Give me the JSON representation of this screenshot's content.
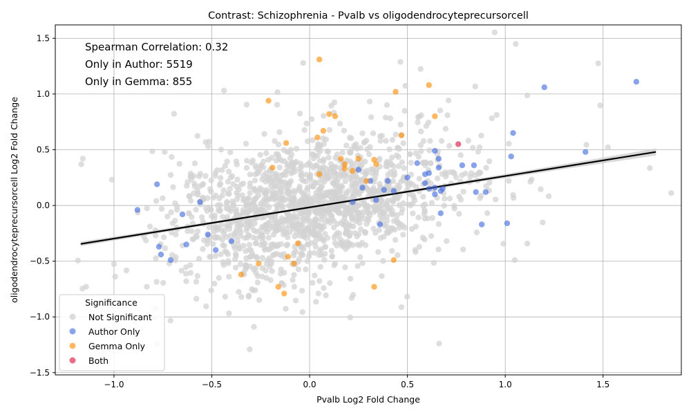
{
  "chart_data": {
    "type": "scatter",
    "title": "Contrast: Schizophrenia - Pvalb vs oligodendrocyteprecursorcell",
    "xlabel": "Pvalb Log2 Fold Change",
    "ylabel": "oligodendrocyteprecursorcell Log2 Fold Change",
    "xlim": [
      -1.3,
      1.9
    ],
    "ylim": [
      -1.52,
      1.62
    ],
    "x_ticks": [
      "−1.0",
      "−0.5",
      "0.0",
      "0.5",
      "1.0",
      "1.5"
    ],
    "x_tick_values": [
      -1.0,
      -0.5,
      0.0,
      0.5,
      1.0,
      1.5
    ],
    "y_ticks": [
      "−1.5",
      "−1.0",
      "−0.5",
      "0.0",
      "0.5",
      "1.0",
      "1.5"
    ],
    "y_tick_values": [
      -1.5,
      -1.0,
      -0.5,
      0.0,
      0.5,
      1.0,
      1.5
    ],
    "grid": true,
    "annotations": [
      "Spearman Correlation: 0.32",
      "Only in Author: 5519",
      "Only in Gemma: 855"
    ],
    "legend": {
      "title": "Significance",
      "placement": "lower-left",
      "entries": [
        "Not Significant",
        "Author Only",
        "Gemma Only",
        "Both"
      ]
    },
    "colors": {
      "Not Significant": "#d3d3d3",
      "Author Only": "#4169e1",
      "Gemma Only": "#ff8c00",
      "Both": "#dc143c"
    },
    "regression_line": {
      "x": [
        -1.17,
        1.77
      ],
      "y": [
        -0.345,
        0.48
      ],
      "color": "#000000"
    },
    "series": [
      {
        "name": "Author Only",
        "points": [
          [
            1.67,
            1.11
          ],
          [
            1.2,
            1.06
          ],
          [
            1.04,
            0.65
          ],
          [
            1.41,
            0.48
          ],
          [
            1.03,
            0.44
          ],
          [
            0.64,
            0.49
          ],
          [
            0.66,
            0.42
          ],
          [
            0.66,
            0.34
          ],
          [
            0.55,
            0.38
          ],
          [
            0.59,
            0.28
          ],
          [
            0.61,
            0.29
          ],
          [
            0.78,
            0.36
          ],
          [
            0.84,
            0.36
          ],
          [
            0.59,
            0.2
          ],
          [
            0.61,
            0.15
          ],
          [
            0.64,
            0.16
          ],
          [
            0.64,
            0.1
          ],
          [
            0.68,
            0.15
          ],
          [
            0.67,
            0.13
          ],
          [
            0.85,
            0.12
          ],
          [
            0.9,
            0.12
          ],
          [
            0.67,
            -0.07
          ],
          [
            0.88,
            -0.17
          ],
          [
            1.01,
            -0.16
          ],
          [
            -0.78,
            0.19
          ],
          [
            -0.88,
            -0.04
          ],
          [
            -0.65,
            -0.08
          ],
          [
            -0.77,
            -0.37
          ],
          [
            -0.76,
            -0.44
          ],
          [
            -0.71,
            -0.49
          ],
          [
            -0.63,
            -0.35
          ],
          [
            -0.52,
            -0.26
          ],
          [
            -0.56,
            0.03
          ],
          [
            -0.48,
            -0.4
          ],
          [
            -0.4,
            -0.32
          ],
          [
            0.38,
            0.14
          ],
          [
            0.43,
            0.13
          ],
          [
            0.5,
            0.25
          ],
          [
            0.36,
            -0.17
          ],
          [
            0.31,
            0.22
          ],
          [
            0.27,
            0.16
          ],
          [
            0.25,
            0.32
          ],
          [
            0.22,
            0.03
          ],
          [
            0.34,
            0.05
          ],
          [
            0.4,
            0.22
          ]
        ]
      },
      {
        "name": "Gemma Only",
        "points": [
          [
            0.05,
            1.31
          ],
          [
            0.44,
            1.02
          ],
          [
            0.61,
            1.08
          ],
          [
            -0.21,
            0.94
          ],
          [
            0.1,
            0.82
          ],
          [
            0.13,
            0.8
          ],
          [
            0.64,
            0.8
          ],
          [
            0.07,
            0.67
          ],
          [
            0.47,
            0.63
          ],
          [
            0.04,
            0.61
          ],
          [
            -0.12,
            0.56
          ],
          [
            0.33,
            0.41
          ],
          [
            -0.19,
            0.34
          ],
          [
            0.18,
            0.37
          ],
          [
            0.18,
            0.33
          ],
          [
            0.43,
            -0.49
          ],
          [
            0.33,
            -0.73
          ],
          [
            -0.16,
            -0.73
          ],
          [
            -0.13,
            -0.79
          ],
          [
            -0.35,
            -0.62
          ],
          [
            -0.26,
            -0.52
          ],
          [
            -0.11,
            -0.46
          ],
          [
            -0.08,
            -0.52
          ],
          [
            0.25,
            0.42
          ],
          [
            0.34,
            0.37
          ],
          [
            0.22,
            0.31
          ],
          [
            -0.06,
            -0.34
          ],
          [
            0.05,
            0.28
          ],
          [
            0.29,
            0.22
          ],
          [
            0.16,
            0.42
          ]
        ]
      },
      {
        "name": "Both",
        "points": [
          [
            0.76,
            0.55
          ]
        ]
      }
    ],
    "background_cloud": {
      "series": "Not Significant",
      "center": [
        0.0,
        0.0
      ],
      "spread": [
        0.35,
        0.3
      ],
      "correlation": 0.32,
      "count": 1600
    }
  }
}
